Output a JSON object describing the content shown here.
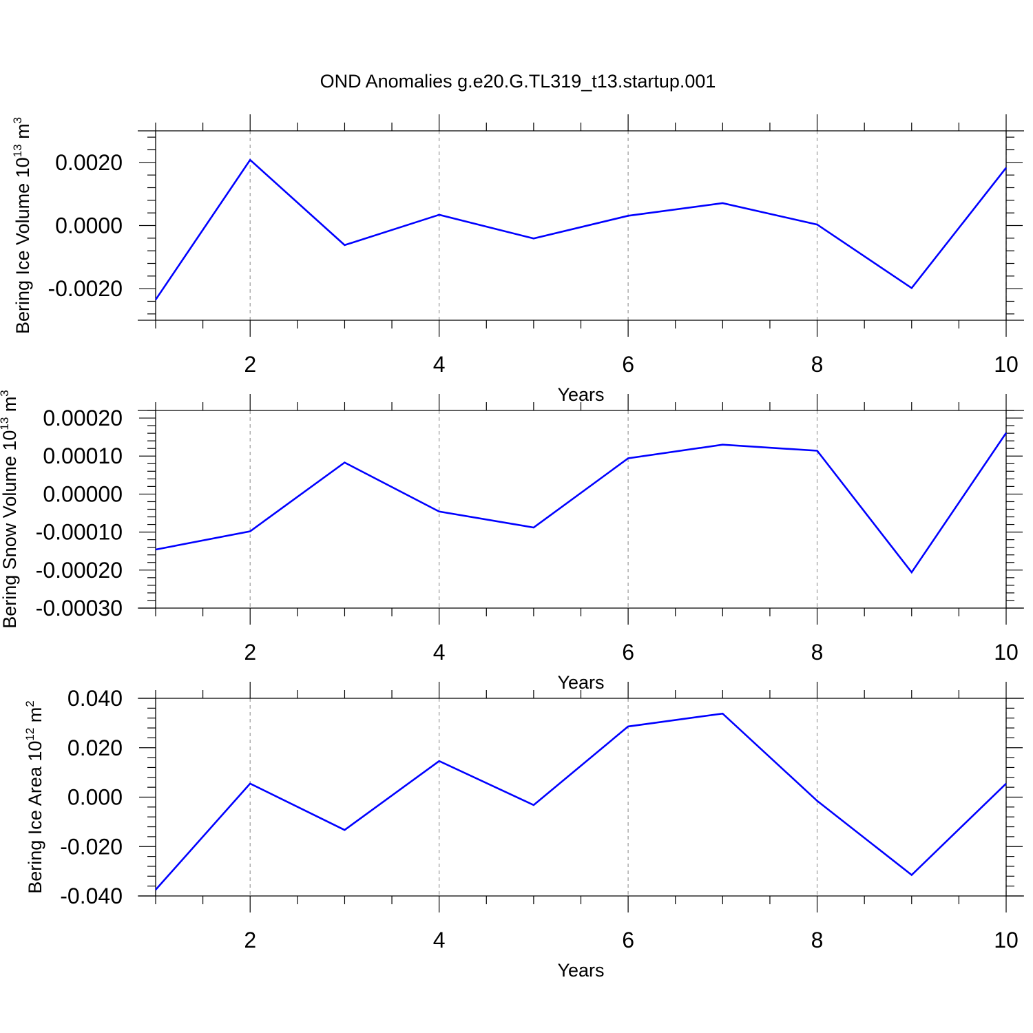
{
  "title": "OND Anomalies g.e20.G.TL319_t13.startup.001",
  "line_color": "#0000ff",
  "grid_color": "#999999",
  "chart_data": [
    {
      "type": "line",
      "title": "",
      "xlabel": "Years",
      "ylabel": "Bering Ice Volume 10",
      "ylabel_sup": "13",
      "ylabel_unit": "m",
      "ylabel_unit_sup": "3",
      "xlim": [
        1,
        10
      ],
      "ylim": [
        -0.003,
        0.003
      ],
      "x_ticks": [
        2,
        4,
        6,
        8,
        10
      ],
      "y_ticks": [
        -0.002,
        0,
        0.002
      ],
      "y_tick_labels": [
        "-0.0020",
        "0.0000",
        "0.0020"
      ],
      "grid": "vertical dashed at major x ticks",
      "x": [
        1,
        2,
        3,
        4,
        5,
        6,
        7,
        8,
        9,
        10
      ],
      "series": [
        {
          "values": [
            -0.00235,
            0.00208,
            -0.00062,
            0.00034,
            -0.00041,
            0.00031,
            0.00071,
            3e-05,
            -0.00198,
            0.00183
          ]
        }
      ]
    },
    {
      "type": "line",
      "title": "",
      "xlabel": "Years",
      "ylabel": "Bering Snow Volume 10",
      "ylabel_sup": "13",
      "ylabel_unit": "m",
      "ylabel_unit_sup": "3",
      "xlim": [
        1,
        10
      ],
      "ylim": [
        -0.0003,
        0.00022
      ],
      "x_ticks": [
        2,
        4,
        6,
        8,
        10
      ],
      "y_ticks": [
        -0.0003,
        -0.0002,
        -0.0001,
        0,
        0.0001,
        0.0002
      ],
      "y_tick_labels": [
        "-0.00030",
        "-0.00020",
        "-0.00010",
        "0.00000",
        "0.00010",
        "0.00020"
      ],
      "grid": "vertical dashed at major x ticks",
      "x": [
        1,
        2,
        3,
        4,
        5,
        6,
        7,
        8,
        9,
        10
      ],
      "series": [
        {
          "values": [
            -0.000146,
            -9.8e-05,
            8.3e-05,
            -4.6e-05,
            -8.8e-05,
            9.4e-05,
            0.00013,
            0.000114,
            -0.000206,
            0.000161
          ]
        }
      ]
    },
    {
      "type": "line",
      "title": "",
      "xlabel": "Years",
      "ylabel": "Bering Ice Area 10",
      "ylabel_sup": "12",
      "ylabel_unit": "m",
      "ylabel_unit_sup": "2",
      "xlim": [
        1,
        10
      ],
      "ylim": [
        -0.04,
        0.04
      ],
      "x_ticks": [
        2,
        4,
        6,
        8,
        10
      ],
      "y_ticks": [
        -0.04,
        -0.02,
        0,
        0.02,
        0.04
      ],
      "y_tick_labels": [
        "-0.040",
        "-0.020",
        "0.000",
        "0.020",
        "0.040"
      ],
      "grid": "vertical dashed at major x ticks",
      "x": [
        1,
        2,
        3,
        4,
        5,
        6,
        7,
        8,
        9,
        10
      ],
      "series": [
        {
          "values": [
            -0.0375,
            0.0055,
            -0.0133,
            0.0146,
            -0.0032,
            0.0286,
            0.0338,
            -0.0015,
            -0.0315,
            0.0055
          ]
        }
      ]
    }
  ]
}
